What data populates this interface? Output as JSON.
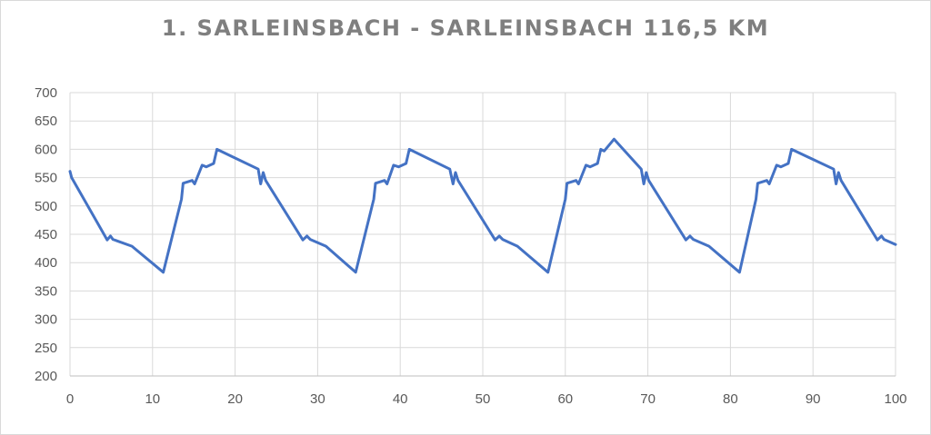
{
  "chart_data": {
    "type": "line",
    "title": "1. SARLEINSBACH - SARLEINSBACH 116,5 KM",
    "xlabel": "",
    "ylabel": "",
    "xlim": [
      0,
      100
    ],
    "ylim": [
      200,
      700
    ],
    "x_ticks": [
      0,
      10,
      20,
      30,
      40,
      50,
      60,
      70,
      80,
      90,
      100
    ],
    "y_ticks": [
      200,
      250,
      300,
      350,
      400,
      450,
      500,
      550,
      600,
      650,
      700
    ],
    "grid": true,
    "legend": "none",
    "colors": {
      "series": "#4472c4",
      "title": "#7f7f7f",
      "grid": "#d9d9d9",
      "ticks": "#595959"
    },
    "series": [
      {
        "x": [
          0,
          0.2,
          4.5,
          4.9,
          5.2,
          7.5,
          11.3,
          13.5,
          13.7,
          14.8,
          15.1,
          16,
          16.5,
          17.4,
          17.8,
          22.8,
          23.1,
          23.4,
          23.7,
          28.2,
          28.7,
          29.1,
          31,
          34.6,
          36.8,
          37,
          38.1,
          38.4,
          39.2,
          39.8,
          40.7,
          41.1,
          46,
          46.4,
          46.7,
          47,
          51.5,
          52,
          52.4,
          54.2,
          57.9,
          60,
          60.2,
          61.3,
          61.6,
          62.5,
          63,
          63.9,
          64.3,
          64.7,
          65.9,
          69.2,
          69.5,
          69.8,
          70.1,
          74.6,
          75.1,
          75.5,
          77.4,
          81.1,
          83.1,
          83.3,
          84.4,
          84.7,
          85.6,
          86.1,
          87,
          87.4,
          92.5,
          92.8,
          93.1,
          93.4,
          97.8,
          98.3,
          98.6,
          100
        ],
        "values": [
          561,
          550,
          440,
          447,
          441,
          429,
          383,
          512,
          540,
          545,
          539,
          572,
          569,
          575,
          600,
          565,
          539,
          559,
          545,
          440,
          447,
          441,
          429,
          383,
          512,
          540,
          545,
          539,
          572,
          569,
          575,
          600,
          565,
          539,
          559,
          545,
          440,
          447,
          441,
          429,
          383,
          512,
          540,
          545,
          539,
          572,
          569,
          575,
          600,
          597,
          618,
          565,
          539,
          559,
          545,
          440,
          447,
          441,
          429,
          383,
          512,
          540,
          545,
          539,
          572,
          569,
          575,
          600,
          565,
          539,
          559,
          545,
          440,
          447,
          441,
          432
        ]
      }
    ]
  }
}
